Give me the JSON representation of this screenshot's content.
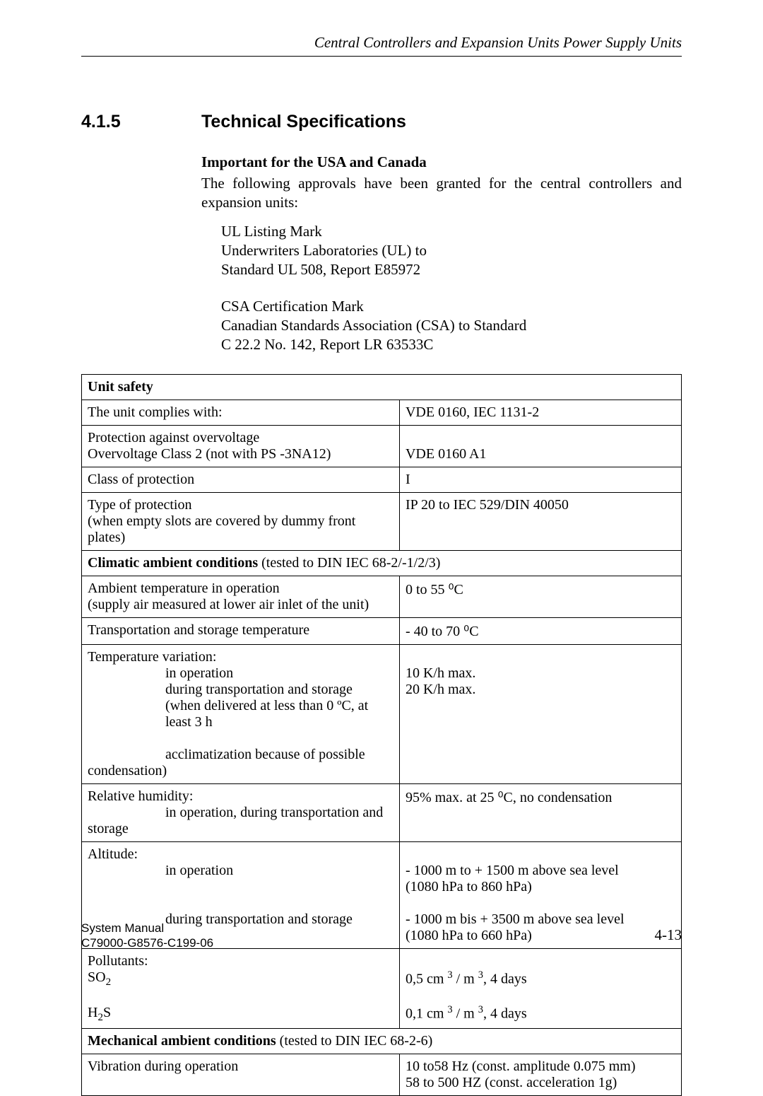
{
  "header": {
    "running_head": "Central Controllers and Expansion Units Power Supply Units"
  },
  "section": {
    "number": "4.1.5",
    "title": "Technical Specifications"
  },
  "intro": {
    "heading": "Important for the USA and Canada",
    "para": "The following approvals have been granted for the central controllers and expansion units:",
    "approval1_l1": "UL Listing Mark",
    "approval1_l2": "Underwriters Laboratories (UL) to",
    "approval1_l3": "Standard UL 508, Report E85972",
    "approval2_l1": "CSA Certification Mark",
    "approval2_l2": "Canadian Standards Association (CSA) to Standard",
    "approval2_l3": "C 22.2 No. 142, Report LR 63533C"
  },
  "table": {
    "group1_header": "Unit safety",
    "r1_l": "The unit complies with:",
    "r1_v": "VDE 0160, IEC 1131-2",
    "r2_l1": "Protection against overvoltage",
    "r2_l2": "Overvoltage Class 2 (not with PS -3NA12)",
    "r2_v": "VDE 0160 A1",
    "r3_l": "Class of protection",
    "r3_v": "I",
    "r4_l1": "Type of protection",
    "r4_l2": "(when empty slots are covered by dummy front plates)",
    "r4_v": "IP 20 to IEC 529/DIN 40050",
    "group2_header_a": "Climatic ambient conditions",
    "group2_header_b": " (tested to DIN IEC 68-2/-1/2/3)",
    "r5_l1": "Ambient temperature in operation",
    "r5_l2": "(supply air measured at lower air inlet of the unit)",
    "r5_v": "0 to 55 ⁰C",
    "r6_l": "Transportation and storage temperature",
    "r6_v": "- 40 to 70 ⁰C",
    "r7_l1": "Temperature variation:",
    "r7_l2": "in operation",
    "r7_l3": "during transportation and storage",
    "r7_l4": "(when delivered at less than 0 ºC, at least 3 h",
    "r7_l5": "acclimatization because of possible",
    "r7_l6": "condensation)",
    "r7_v1": "10 K/h max.",
    "r7_v2": "20 K/h max.",
    "r8_l1": "Relative humidity:",
    "r8_l2": "in operation, during transportation and",
    "r8_l3": "storage",
    "r8_v": "95% max. at 25 ⁰C, no condensation",
    "r9_l1": "Altitude:",
    "r9_l2": "in operation",
    "r9_l3": "during transportation and storage",
    "r9_v1": "- 1000 m to + 1500 m above sea level",
    "r9_v2": "(1080 hPa to 860 hPa)",
    "r9_v3": "- 1000 m bis + 3500 m above sea level",
    "r9_v4": "(1080 hPa to 660 hPa)",
    "r10_l1": "Pollutants:",
    "r10_l2a": "SO",
    "r10_l2b": "2",
    "r10_l3a": "H",
    "r10_l3b": "2",
    "r10_l3c": "S",
    "r10_v1a": "0,5 cm ",
    "r10_v1b": "3",
    "r10_v1c": " / m ",
    "r10_v1d": "3",
    "r10_v1e": ",  4 days",
    "r10_v2a": "0,1 cm ",
    "r10_v2b": "3",
    "r10_v2c": " / m ",
    "r10_v2d": "3",
    "r10_v2e": ",  4 days",
    "group3_header_a": "Mechanical ambient conditions",
    "group3_header_b": " (tested to DIN IEC 68-2-6)",
    "r11_l": "Vibration during operation",
    "r11_v1": "10 to58 Hz (const. amplitude 0.075 mm)",
    "r11_v2": "58 to 500 HZ (const. acceleration 1g)"
  },
  "footer": {
    "l1": "System Manual",
    "l2": "C79000-G8576-C199-06",
    "page": "4-13"
  }
}
